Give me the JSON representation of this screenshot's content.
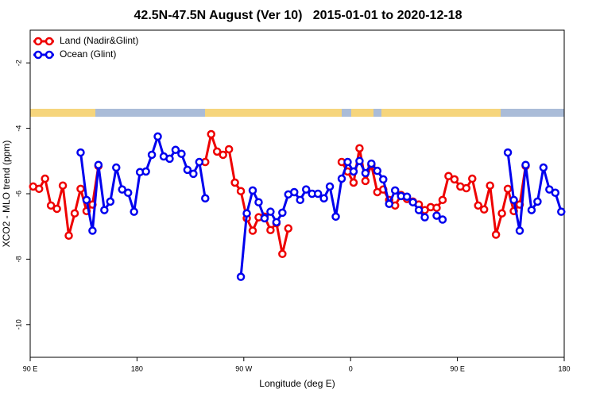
{
  "chart_data": {
    "type": "line",
    "title": "42.5N-47.5N August (Ver 10)   2015-01-01 to 2020-12-18",
    "x_label": "Longitude (deg E)",
    "y_label": "XCO2 - MLO trend (ppm)",
    "xlim": [
      90,
      540
    ],
    "ylim": [
      -11,
      -1
    ],
    "xticks": [
      {
        "value": 90,
        "label": "90 E"
      },
      180,
      {
        "value": 270,
        "label": "90 W"
      },
      {
        "value": 360,
        "label": "0"
      },
      {
        "value": 450,
        "label": "90 E"
      },
      {
        "value": 540,
        "label": "180"
      }
    ],
    "yticks": [
      -2,
      -4,
      -6,
      -8,
      -10
    ],
    "legend": "top-left",
    "x": [
      92.5,
      97.5,
      102.5,
      107.5,
      112.5,
      117.5,
      122.5,
      127.5,
      132.5,
      137.5,
      142.5,
      147.5,
      152.5,
      157.5,
      162.5,
      167.5,
      172.5,
      177.5,
      182.5,
      187.5,
      192.5,
      197.5,
      202.5,
      207.5,
      212.5,
      217.5,
      222.5,
      227.5,
      232.5,
      237.5,
      242.5,
      247.5,
      252.5,
      257.5,
      262.5,
      267.5,
      272.5,
      277.5,
      282.5,
      287.5,
      292.5,
      297.5,
      302.5,
      307.5,
      312.5,
      317.5,
      322.5,
      327.5,
      332.5,
      337.5,
      342.5,
      347.5,
      352.5,
      357.5,
      362.5,
      367.5,
      372.5,
      377.5,
      382.5,
      387.5,
      392.5,
      397.5,
      402.5,
      407.5,
      412.5,
      417.5,
      422.5,
      427.5,
      432.5,
      437.5,
      442.5,
      447.5,
      452.5,
      457.5,
      462.5,
      467.5,
      472.5,
      477.5,
      482.5,
      487.5,
      492.5,
      497.5,
      502.5,
      507.5,
      512.5,
      517.5,
      522.5,
      527.5,
      532.5,
      537.5
    ],
    "series": [
      {
        "name": "Land (Nadir&Glint)",
        "color": "#ee0000",
        "values": [
          -5.78,
          -5.85,
          -5.54,
          -6.36,
          -6.46,
          -5.75,
          -7.28,
          -6.6,
          -5.85,
          -6.53,
          -6.33,
          -5.15,
          null,
          null,
          null,
          null,
          null,
          null,
          null,
          null,
          null,
          null,
          null,
          null,
          null,
          null,
          null,
          null,
          null,
          -5.03,
          -4.18,
          -4.71,
          -4.81,
          -4.64,
          -5.66,
          -5.92,
          -6.75,
          -7.13,
          -6.72,
          -6.7,
          -7.11,
          -6.9,
          -7.84,
          -7.06,
          null,
          null,
          null,
          null,
          null,
          null,
          null,
          null,
          -5.03,
          -5.32,
          -5.66,
          -4.61,
          -5.61,
          -5.12,
          -5.95,
          -5.87,
          -6.19,
          -6.36,
          -6.04,
          -6.16,
          -6.24,
          -6.33,
          -6.5,
          -6.41,
          -6.43,
          -6.19,
          -5.46,
          -5.56,
          -5.78,
          -5.83,
          -5.54,
          -6.36,
          -6.48,
          -5.75,
          -7.25,
          -6.6,
          -5.85,
          -6.53,
          -6.33,
          -5.15,
          null,
          null,
          null,
          null,
          null,
          null
        ]
      },
      {
        "name": "Ocean (Glint)",
        "color": "#0000ee",
        "values": [
          null,
          null,
          null,
          null,
          null,
          null,
          null,
          null,
          -4.74,
          -6.19,
          -7.13,
          -5.12,
          -6.5,
          -6.24,
          -5.2,
          -5.87,
          -5.97,
          -6.55,
          -5.34,
          -5.32,
          -4.81,
          -4.25,
          -4.86,
          -4.93,
          -4.66,
          -4.78,
          -5.27,
          -5.39,
          -5.03,
          -6.14,
          null,
          null,
          null,
          null,
          null,
          -8.54,
          -6.6,
          -5.9,
          -6.26,
          -6.75,
          -6.55,
          -6.87,
          -6.58,
          -6.02,
          -5.95,
          -6.19,
          -5.87,
          -6,
          -6,
          -6.14,
          -5.78,
          -6.7,
          -5.54,
          -5.03,
          -5.32,
          -5,
          -5.37,
          -5.08,
          -5.3,
          -5.56,
          -6.31,
          -5.9,
          -6.07,
          -6.09,
          -6.26,
          -6.5,
          -6.72,
          null,
          -6.67,
          -6.79,
          null,
          null,
          null,
          null,
          null,
          null,
          null,
          null,
          null,
          null,
          -4.74,
          -6.19,
          -7.13,
          -5.12,
          -6.5,
          -6.24,
          -5.2,
          -5.87,
          -5.97,
          -6.55
        ]
      }
    ]
  }
}
